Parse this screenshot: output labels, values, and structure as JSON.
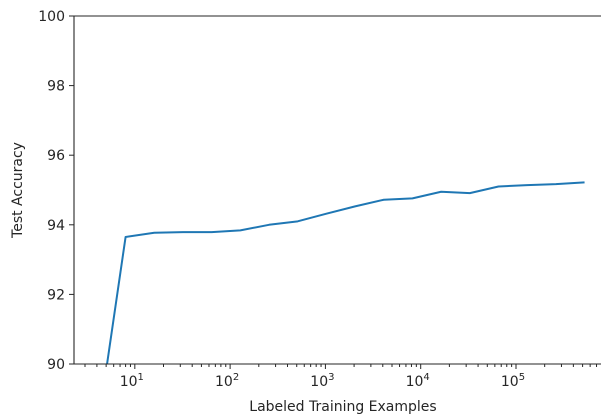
{
  "chart_data": {
    "type": "line",
    "title": "",
    "xlabel": "Labeled Training Examples",
    "ylabel": "Test Accuracy",
    "xscale": "log",
    "xlim": [
      2.3,
      780000
    ],
    "ylim": [
      90,
      100
    ],
    "grid": false,
    "legend": "none",
    "y_ticks": [
      "90",
      "92",
      "94",
      "96",
      "98",
      "100"
    ],
    "x_ticks": [
      {
        "base": "10",
        "exp": "1"
      },
      {
        "base": "10",
        "exp": "2"
      },
      {
        "base": "10",
        "exp": "3"
      },
      {
        "base": "10",
        "exp": "4"
      },
      {
        "base": "10",
        "exp": "5"
      }
    ],
    "series": [
      {
        "color": "#1f77b4",
        "x": [
          4,
          8,
          16,
          32,
          64,
          128,
          256,
          512,
          1024,
          2048,
          4096,
          8192,
          16384,
          32768,
          65536,
          131072,
          262144,
          524288
        ],
        "y": [
          88.0,
          93.65,
          93.77,
          93.79,
          93.79,
          93.84,
          94.0,
          94.1,
          94.32,
          94.53,
          94.72,
          94.76,
          94.95,
          94.91,
          95.1,
          95.14,
          95.17,
          95.22
        ]
      }
    ]
  }
}
